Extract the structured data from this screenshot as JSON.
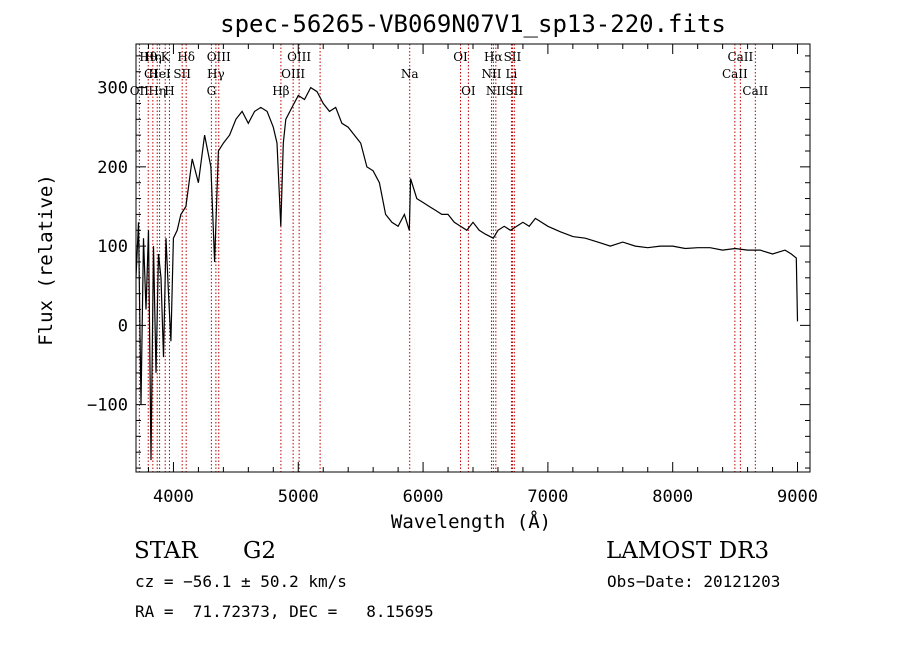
{
  "chart_data": {
    "type": "line",
    "title": "spec-56265-VB069N07V1_sp13-220.fits",
    "xlabel": "Wavelength (Å)",
    "ylabel": "Flux (relative)",
    "xlim": [
      3700,
      9100
    ],
    "ylim": [
      -185,
      355
    ],
    "xticks": [
      4000,
      5000,
      6000,
      7000,
      8000,
      9000
    ],
    "xtick_labels": [
      "4000",
      "5000",
      "6000",
      "7000",
      "8000",
      "9000"
    ],
    "yticks": [
      -100,
      0,
      100,
      200,
      300
    ],
    "ytick_labels": [
      "−100",
      "0",
      "100",
      "200",
      "300"
    ],
    "series": [
      {
        "name": "flux",
        "x": [
          3700,
          3720,
          3740,
          3760,
          3780,
          3800,
          3820,
          3840,
          3860,
          3880,
          3900,
          3920,
          3940,
          3960,
          3980,
          4000,
          4030,
          4060,
          4100,
          4150,
          4200,
          4250,
          4300,
          4330,
          4360,
          4400,
          4450,
          4500,
          4550,
          4600,
          4650,
          4700,
          4750,
          4800,
          4830,
          4860,
          4880,
          4900,
          4950,
          5000,
          5050,
          5100,
          5150,
          5200,
          5250,
          5300,
          5350,
          5400,
          5450,
          5500,
          5550,
          5600,
          5650,
          5700,
          5750,
          5800,
          5850,
          5890,
          5900,
          5950,
          6000,
          6050,
          6100,
          6150,
          6200,
          6250,
          6300,
          6350,
          6400,
          6450,
          6500,
          6563,
          6600,
          6650,
          6700,
          6750,
          6800,
          6850,
          6900,
          7000,
          7100,
          7200,
          7300,
          7400,
          7500,
          7600,
          7700,
          7800,
          7900,
          8000,
          8100,
          8200,
          8300,
          8400,
          8500,
          8600,
          8700,
          8800,
          8900,
          8950,
          8990,
          9000
        ],
        "y": [
          60,
          130,
          -100,
          110,
          20,
          120,
          -170,
          100,
          -60,
          90,
          60,
          -40,
          110,
          40,
          -20,
          110,
          120,
          140,
          150,
          210,
          180,
          240,
          200,
          80,
          220,
          230,
          240,
          260,
          270,
          255,
          270,
          275,
          270,
          250,
          230,
          125,
          230,
          260,
          275,
          290,
          285,
          300,
          295,
          280,
          270,
          275,
          255,
          250,
          240,
          230,
          200,
          195,
          180,
          140,
          130,
          125,
          140,
          120,
          185,
          160,
          155,
          150,
          145,
          140,
          140,
          130,
          125,
          120,
          130,
          120,
          115,
          110,
          120,
          125,
          120,
          125,
          130,
          125,
          135,
          125,
          118,
          112,
          110,
          105,
          100,
          105,
          100,
          98,
          100,
          100,
          97,
          98,
          98,
          95,
          97,
          95,
          95,
          90,
          95,
          90,
          85,
          5
        ]
      }
    ],
    "line_markers": [
      {
        "label": "Hθ",
        "x": 3798,
        "row": 1
      },
      {
        "label": "CI",
        "x": 3820,
        "row": 2
      },
      {
        "label": "OII",
        "x": 3727,
        "row": 3
      },
      {
        "label": "Hη",
        "x": 3835,
        "row": 1
      },
      {
        "label": "HeI",
        "x": 3889,
        "row": 2
      },
      {
        "label": "Hη",
        "x": 3870,
        "row": 3
      },
      {
        "label": "K",
        "x": 3934,
        "row": 1
      },
      {
        "label": "SII",
        "x": 4070,
        "row": 2
      },
      {
        "label": "H",
        "x": 3968,
        "row": 3
      },
      {
        "label": "Hδ",
        "x": 4102,
        "row": 1
      },
      {
        "label": "OIII",
        "x": 4363,
        "row": 1
      },
      {
        "label": "Hγ",
        "x": 4340,
        "row": 2
      },
      {
        "label": "G",
        "x": 4304,
        "row": 3
      },
      {
        "label": "OIII",
        "x": 5007,
        "row": 1
      },
      {
        "label": "OIII",
        "x": 4959,
        "row": 2
      },
      {
        "label": "Hβ",
        "x": 4861,
        "row": 3
      },
      {
        "label": "Na",
        "x": 5893,
        "row": 2
      },
      {
        "label": "OI",
        "x": 6300,
        "row": 1
      },
      {
        "label": "OI",
        "x": 6363,
        "row": 3
      },
      {
        "label": "Hα",
        "x": 6563,
        "row": 1
      },
      {
        "label": "SII",
        "x": 6716,
        "row": 1
      },
      {
        "label": "NII",
        "x": 6548,
        "row": 2
      },
      {
        "label": "Li",
        "x": 6708,
        "row": 2
      },
      {
        "label": "NII",
        "x": 6583,
        "row": 3
      },
      {
        "label": "SII",
        "x": 6731,
        "row": 3
      },
      {
        "label": "CaII",
        "x": 8542,
        "row": 1
      },
      {
        "label": "CaII",
        "x": 8498,
        "row": 2
      },
      {
        "label": "CaII",
        "x": 8662,
        "row": 3
      }
    ],
    "marker_lines_x": [
      3727,
      3798,
      3835,
      3870,
      3889,
      3934,
      3968,
      4070,
      4102,
      4304,
      4340,
      4363,
      4861,
      4959,
      5007,
      5175,
      5893,
      6300,
      6363,
      6548,
      6563,
      6583,
      6708,
      6716,
      6731,
      8498,
      8542,
      8662
    ]
  },
  "info": {
    "class": "STAR",
    "subclass": "G2",
    "survey": "LAMOST DR3",
    "cz": "cz = −56.1 ± 50.2 km/s",
    "obs_date": "Obs−Date: 20121203",
    "coords": "RA =  71.72373, DEC =   8.15695"
  }
}
